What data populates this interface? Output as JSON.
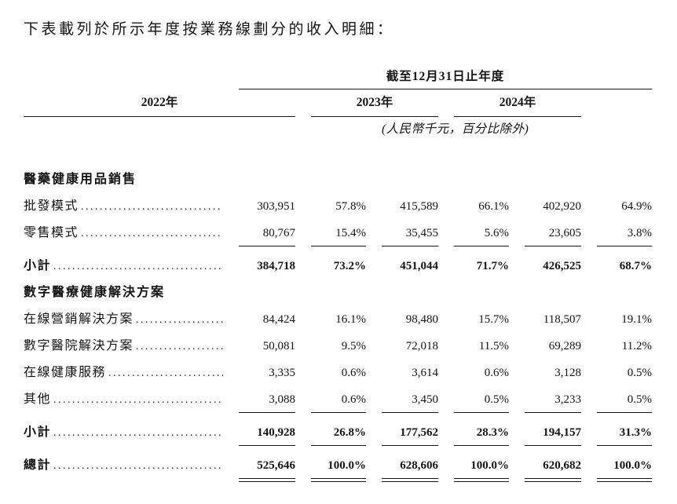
{
  "intro": "下表載列於所示年度按業務線劃分的收入明細：",
  "header": {
    "period": "截至12月31日止年度",
    "years": [
      "2022年",
      "2023年",
      "2024年"
    ],
    "unit_note": "(人民幣千元，百分比除外)"
  },
  "rows": [
    {
      "type": "section",
      "label": "醫藥健康用品銷售"
    },
    {
      "type": "data",
      "label": "批發模式",
      "c": [
        "303,951",
        "57.8%",
        "415,589",
        "66.1%",
        "402,920",
        "64.9%"
      ]
    },
    {
      "type": "data",
      "label": "零售模式",
      "c": [
        "80,767",
        "15.4%",
        "35,455",
        "5.6%",
        "23,605",
        "3.8%"
      ]
    },
    {
      "type": "subtotal",
      "label": "小計",
      "c": [
        "384,718",
        "73.2%",
        "451,044",
        "71.7%",
        "426,525",
        "68.7%"
      ]
    },
    {
      "type": "section",
      "label": "數字醫療健康解決方案"
    },
    {
      "type": "data",
      "label": "在線營銷解決方案",
      "c": [
        "84,424",
        "16.1%",
        "98,480",
        "15.7%",
        "118,507",
        "19.1%"
      ]
    },
    {
      "type": "data",
      "label": "數字醫院解決方案",
      "c": [
        "50,081",
        "9.5%",
        "72,018",
        "11.5%",
        "69,289",
        "11.2%"
      ]
    },
    {
      "type": "data",
      "label": "在線健康服務",
      "c": [
        "3,335",
        "0.6%",
        "3,614",
        "0.6%",
        "3,128",
        "0.5%"
      ]
    },
    {
      "type": "data",
      "label": "其他",
      "c": [
        "3,088",
        "0.6%",
        "3,450",
        "0.5%",
        "3,233",
        "0.5%"
      ]
    },
    {
      "type": "subtotal",
      "label": "小計",
      "c": [
        "140,928",
        "26.8%",
        "177,562",
        "28.3%",
        "194,157",
        "31.3%"
      ]
    },
    {
      "type": "total",
      "label": "總計",
      "c": [
        "525,646",
        "100.0%",
        "628,606",
        "100.0%",
        "620,682",
        "100.0%"
      ]
    }
  ]
}
